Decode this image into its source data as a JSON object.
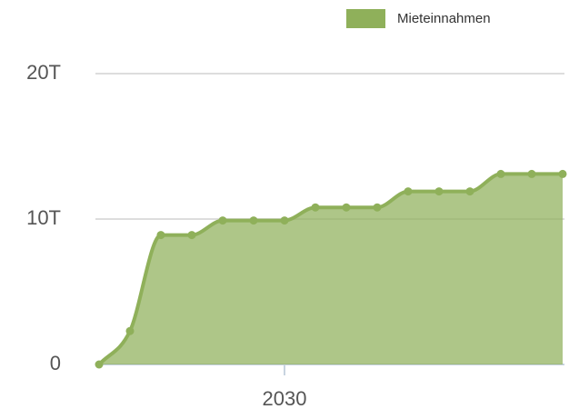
{
  "chart_data": {
    "type": "area",
    "x": [
      2024,
      2025,
      2026,
      2027,
      2028,
      2029,
      2030,
      2031,
      2032,
      2033,
      2034,
      2035,
      2036,
      2037,
      2038,
      2039
    ],
    "series": [
      {
        "name": "Mieteinnahmen",
        "color": "#8fb05a",
        "values": [
          0,
          2300,
          8900,
          8900,
          9900,
          9900,
          9900,
          10800,
          10800,
          10800,
          11900,
          11900,
          11900,
          13100,
          13100,
          13100
        ]
      }
    ],
    "xlim": [
      2024,
      2039
    ],
    "xticks": [
      2030
    ],
    "ylim": [
      0,
      20000
    ],
    "yticks": [
      0,
      {
        "value": 10000,
        "label": "10T"
      },
      {
        "value": 20000,
        "label": "20T"
      }
    ],
    "grid": true,
    "legend": "top-right"
  }
}
